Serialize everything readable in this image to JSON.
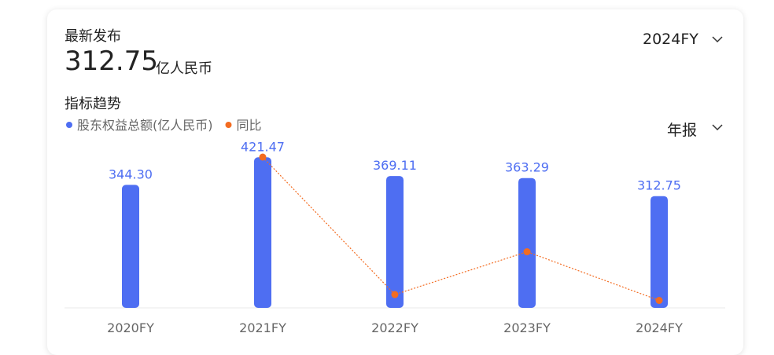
{
  "header": {
    "label": "最新发布",
    "value": "312.75",
    "unit": "亿人民币",
    "period": "2024FY",
    "section": "指标趋势",
    "report": "年报"
  },
  "chart_data": {
    "type": "bar",
    "categories": [
      "2020FY",
      "2021FY",
      "2022FY",
      "2023FY",
      "2024FY"
    ],
    "series": [
      {
        "name": "股东权益总额(亿人民币)",
        "color": "#4e6ef2",
        "values": [
          344.3,
          421.47,
          369.11,
          363.29,
          312.75
        ],
        "value_labels": [
          "344.30",
          "421.47",
          "369.11",
          "363.29",
          "312.75"
        ]
      },
      {
        "name": "同比",
        "color": "#f36c21",
        "type": "line",
        "axis": "y2",
        "values": [
          null,
          22.41,
          -12.42,
          -1.58,
          -13.91
        ]
      }
    ],
    "ylim": [
      0,
      444
    ],
    "y2lim": [
      -15.8,
      24.4
    ]
  }
}
